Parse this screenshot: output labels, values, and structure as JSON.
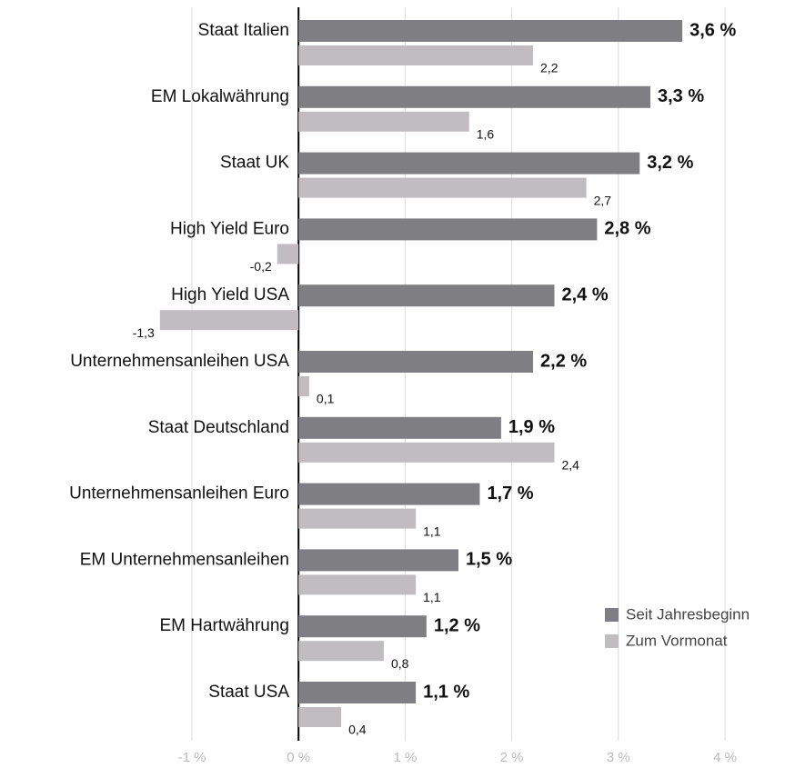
{
  "chart_data": {
    "type": "bar",
    "orientation": "horizontal",
    "categories": [
      "Staat Italien",
      "EM Lokalwährung",
      "Staat UK",
      "High Yield Euro",
      "High Yield USA",
      "Unternehmensanleihen USA",
      "Staat Deutschland",
      "Unternehmensanleihen Euro",
      "EM Unternehmensanleihen",
      "EM Hartwährung",
      "Staat USA"
    ],
    "series": [
      {
        "name": "Seit Jahresbeginn",
        "color": "#7f7e83",
        "values": [
          3.6,
          3.3,
          3.2,
          2.8,
          2.4,
          2.2,
          1.9,
          1.7,
          1.5,
          1.2,
          1.1
        ],
        "value_labels": [
          "3,6 %",
          "3,3 %",
          "3,2 %",
          "2,8 %",
          "2,4 %",
          "2,2 %",
          "1,9 %",
          "1,7 %",
          "1,5 %",
          "1,2 %",
          "1,1 %"
        ]
      },
      {
        "name": "Zum Vormonat",
        "color": "#c1bcc0",
        "values": [
          2.2,
          1.6,
          2.7,
          -0.2,
          -1.3,
          0.1,
          2.4,
          1.1,
          1.1,
          0.8,
          0.4
        ],
        "value_labels": [
          "2,2",
          "1,6",
          "2,7",
          "-0,2",
          "-1,3",
          "0,1",
          "2,4",
          "1,1",
          "1,1",
          "0,8",
          "0,4"
        ]
      }
    ],
    "xlim": [
      -1,
      4
    ],
    "xticks": [
      {
        "value": -1,
        "label": "-1 %"
      },
      {
        "value": 0,
        "label": "0 %"
      },
      {
        "value": 1,
        "label": "1 %"
      },
      {
        "value": 2,
        "label": "2 %"
      },
      {
        "value": 3,
        "label": "3 %"
      },
      {
        "value": 4,
        "label": "4 %"
      }
    ],
    "grid": true,
    "legend": "lower right"
  }
}
